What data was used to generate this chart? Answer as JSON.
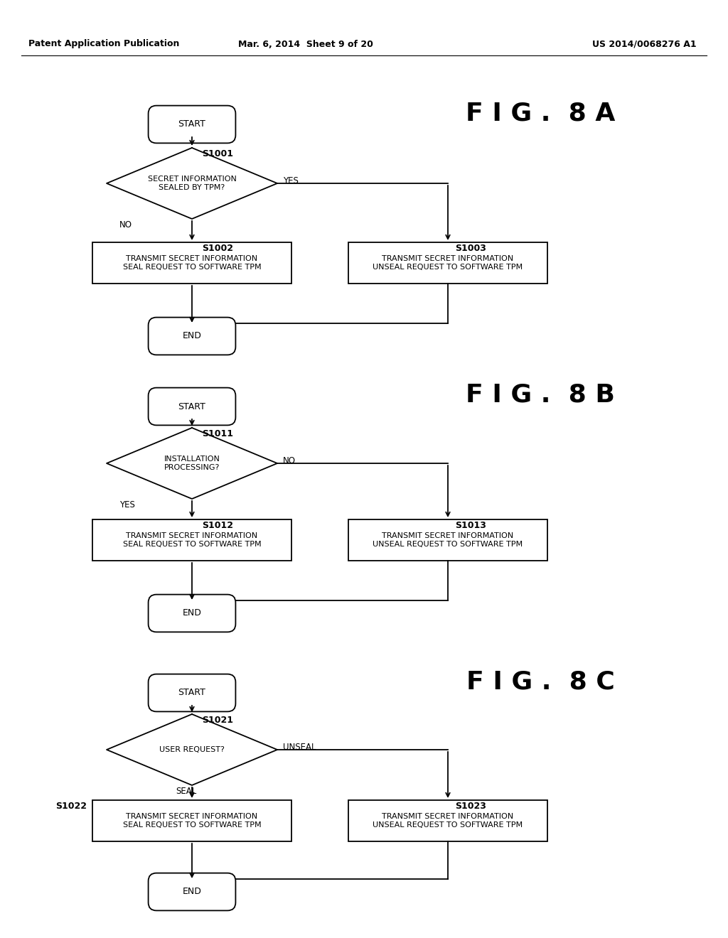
{
  "bg_color": "#ffffff",
  "header_left": "Patent Application Publication",
  "header_mid": "Mar. 6, 2014  Sheet 9 of 20",
  "header_right": "US 2014/0068276 A1",
  "fig8a_title": "F I G .  8 A",
  "fig8b_title": "F I G .  8 B",
  "fig8c_title": "F I G .  8 C",
  "seal_text": "TRANSMIT SECRET INFORMATION\nSEAL REQUEST TO SOFTWARE TPM",
  "unseal_text": "TRANSMIT SECRET INFORMATION\nUNSEAL REQUEST TO SOFTWARE TPM",
  "fig8a_diamond": "SECRET INFORMATION\nSEALED BY TPM?",
  "fig8b_diamond": "INSTALLATION\nPROCESSING?",
  "fig8c_diamond": "USER REQUEST?",
  "lw": 1.3,
  "font_size_box": 8.0,
  "font_size_label": 9.0,
  "font_size_step": 9.0,
  "font_size_yesno": 8.5,
  "font_size_title": 26,
  "font_size_header": 9
}
